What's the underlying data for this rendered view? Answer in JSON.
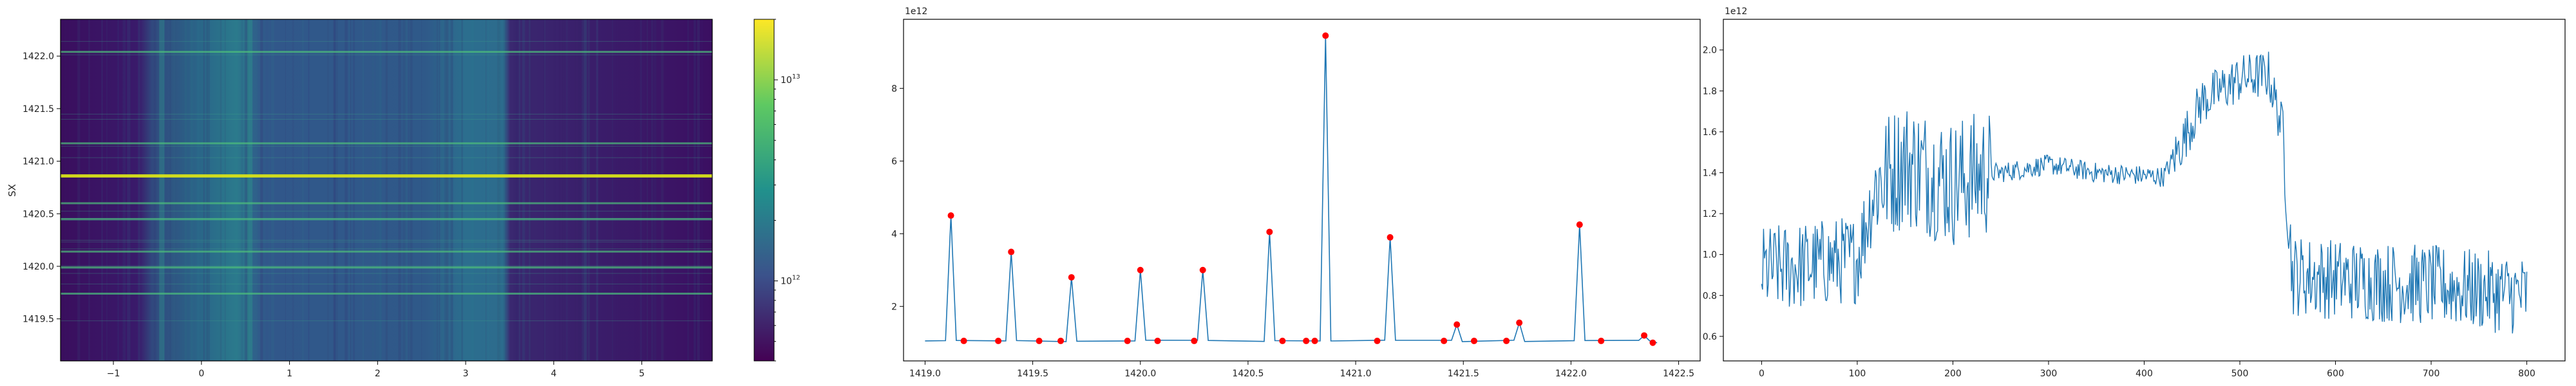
{
  "chart_data": [
    {
      "type": "heatmap",
      "title": "",
      "xlabel": "",
      "ylabel": "SX",
      "xlim": [
        -1.6,
        5.8
      ],
      "ylim": [
        1419.1,
        1422.35
      ],
      "x_ticks": [
        -1,
        0,
        1,
        2,
        3,
        4,
        5
      ],
      "y_ticks": [
        1419.5,
        1420.0,
        1420.5,
        1421.0,
        1421.5,
        1422.0
      ],
      "colormap": "viridis",
      "colorbar": {
        "scale": "log",
        "tick_labels": [
          "10^12",
          "10^13"
        ],
        "tick_values": [
          1000000000000.0,
          10000000000000.0
        ],
        "range": [
          400000000000.0,
          20000000000000.0
        ]
      },
      "bright_band_columns_x": [
        -0.45,
        0.55
      ],
      "dark_regions_x": [
        [
          -1.6,
          -0.45
        ],
        [
          3.45,
          5.8
        ]
      ],
      "bright_rows_y": [
        1419.74,
        1419.99,
        1420.14,
        1420.45,
        1420.6,
        1420.86,
        1421.17,
        1422.04
      ],
      "brightest_row_y": 1420.86
    },
    {
      "type": "line",
      "title": "",
      "xlabel": "",
      "ylabel": "",
      "offset_label": "1e12",
      "xlim": [
        1418.9,
        1422.6
      ],
      "ylim": [
        0.5,
        9.9
      ],
      "x_ticks": [
        1419.0,
        1419.5,
        1420.0,
        1420.5,
        1421.0,
        1421.5,
        1422.0,
        1422.5
      ],
      "y_ticks": [
        2,
        4,
        6,
        8
      ],
      "baseline": 1.05,
      "peaks": [
        [
          1419.12,
          4.5
        ],
        [
          1419.4,
          3.5
        ],
        [
          1419.68,
          2.8
        ],
        [
          1420.0,
          3.0
        ],
        [
          1420.29,
          3.0
        ],
        [
          1420.6,
          4.05
        ],
        [
          1420.86,
          9.45
        ],
        [
          1421.16,
          3.9
        ],
        [
          1421.47,
          1.5
        ],
        [
          1421.76,
          1.55
        ],
        [
          1422.04,
          4.25
        ],
        [
          1422.34,
          1.2
        ]
      ],
      "markers": [
        [
          1419.12,
          4.5
        ],
        [
          1419.18,
          1.05
        ],
        [
          1419.34,
          1.05
        ],
        [
          1419.4,
          3.5
        ],
        [
          1419.53,
          1.05
        ],
        [
          1419.63,
          1.05
        ],
        [
          1419.68,
          2.8
        ],
        [
          1419.94,
          1.05
        ],
        [
          1420.0,
          3.0
        ],
        [
          1420.08,
          1.05
        ],
        [
          1420.25,
          1.05
        ],
        [
          1420.29,
          3.0
        ],
        [
          1420.6,
          4.05
        ],
        [
          1420.66,
          1.05
        ],
        [
          1420.77,
          1.05
        ],
        [
          1420.81,
          1.05
        ],
        [
          1420.86,
          9.45
        ],
        [
          1421.1,
          1.05
        ],
        [
          1421.16,
          3.9
        ],
        [
          1421.41,
          1.05
        ],
        [
          1421.47,
          1.5
        ],
        [
          1421.55,
          1.05
        ],
        [
          1421.7,
          1.05
        ],
        [
          1421.76,
          1.55
        ],
        [
          1422.04,
          4.25
        ],
        [
          1422.14,
          1.05
        ],
        [
          1422.34,
          1.2
        ],
        [
          1422.38,
          1.0
        ]
      ],
      "marker_color": "#ff0000",
      "line_color": "#1f77b4"
    },
    {
      "type": "line",
      "title": "",
      "xlabel": "",
      "ylabel": "",
      "offset_label": "1e12",
      "xlim": [
        -40,
        840
      ],
      "ylim": [
        0.48,
        2.15
      ],
      "x_ticks": [
        0,
        100,
        200,
        300,
        400,
        500,
        600,
        700,
        800
      ],
      "y_ticks": [
        0.6,
        0.8,
        1.0,
        1.2,
        1.4,
        1.6,
        1.8,
        2.0
      ],
      "series_profile": [
        [
          0,
          0.92
        ],
        [
          50,
          0.95
        ],
        [
          100,
          0.98
        ],
        [
          120,
          1.35
        ],
        [
          150,
          1.45
        ],
        [
          200,
          1.35
        ],
        [
          235,
          1.4
        ],
        [
          250,
          1.4
        ],
        [
          300,
          1.44
        ],
        [
          350,
          1.4
        ],
        [
          420,
          1.38
        ],
        [
          440,
          1.55
        ],
        [
          460,
          1.75
        ],
        [
          500,
          1.86
        ],
        [
          530,
          1.88
        ],
        [
          545,
          1.6
        ],
        [
          555,
          0.9
        ],
        [
          600,
          0.88
        ],
        [
          700,
          0.85
        ],
        [
          800,
          0.8
        ]
      ],
      "line_color": "#1f77b4"
    }
  ]
}
